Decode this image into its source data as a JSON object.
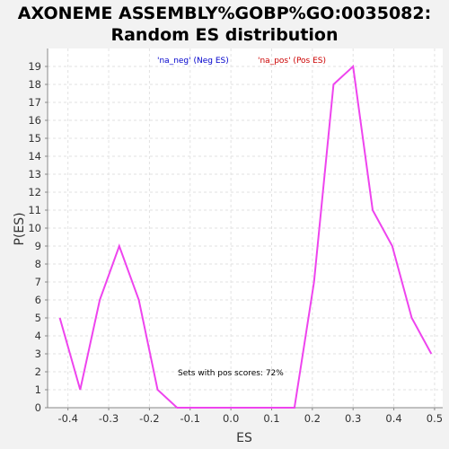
{
  "chart_data": {
    "type": "line",
    "title_line1": "AXONEME ASSEMBLY%GOBP%GO:0035082:",
    "title_line2": "Random ES distribution",
    "xlabel": "ES",
    "ylabel": "P(ES)",
    "xlim": [
      -0.45,
      0.52
    ],
    "ylim": [
      0,
      20
    ],
    "x_ticks": [
      -0.4,
      -0.3,
      -0.2,
      -0.1,
      0.0,
      0.1,
      0.2,
      0.3,
      0.4,
      0.5
    ],
    "x_tick_labels": [
      "-0.4",
      "-0.3",
      "-0.2",
      "-0.1",
      "0.0",
      "0.1",
      "0.2",
      "0.3",
      "0.4",
      "0.5"
    ],
    "y_ticks": [
      0,
      1,
      2,
      3,
      4,
      5,
      6,
      7,
      8,
      9,
      10,
      11,
      12,
      13,
      14,
      15,
      16,
      17,
      18,
      19
    ],
    "grid": true,
    "legend_placement": "top",
    "legend": [
      {
        "label": "'na_neg' (Neg ES)",
        "color": "#0000cc"
      },
      {
        "label": "'na_pos' (Pos ES)",
        "color": "#cc0000"
      }
    ],
    "annotation": "Sets with pos scores: 72%",
    "series": [
      {
        "color": "#ee44ee",
        "x": [
          -0.42,
          -0.37,
          -0.322,
          -0.274,
          -0.226,
          -0.18,
          -0.132,
          -0.084,
          -0.036,
          0.012,
          0.06,
          0.108,
          0.156,
          0.204,
          0.252,
          0.3,
          0.348,
          0.396,
          0.444,
          0.492
        ],
        "y": [
          5,
          1,
          6,
          9,
          6,
          1,
          0,
          0,
          0,
          0,
          0,
          0,
          0,
          7,
          18,
          19,
          11,
          9,
          5,
          3
        ]
      }
    ]
  }
}
